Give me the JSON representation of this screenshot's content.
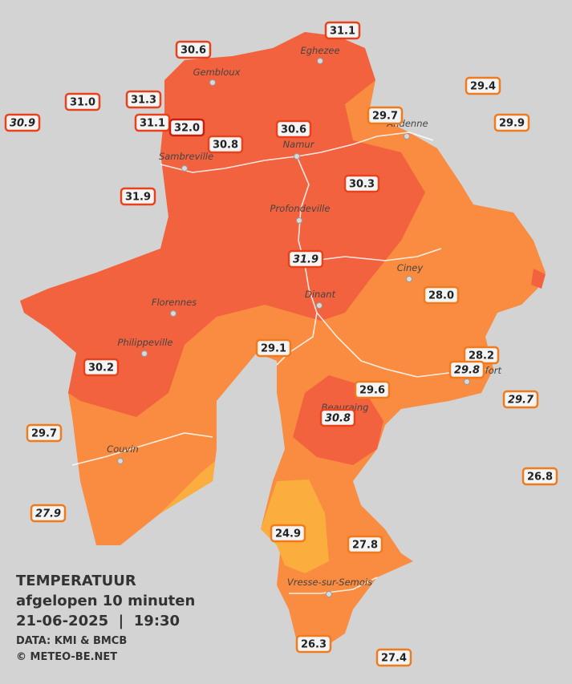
{
  "title": {
    "heading": "TEMPERATUUR",
    "subtitle": "afgelopen 10 minuten",
    "datetime": "21-06-2025  |  19:30",
    "source": "DATA: KMI & BMCB",
    "copyright": "© METEO-BE.NET"
  },
  "cities": [
    "Eghezee",
    "Gembloux",
    "Andenne",
    "Namur",
    "Sambreville",
    "Profondeville",
    "Ciney",
    "Dinant",
    "Florennes",
    "Philippeville",
    "Rochefort",
    "Beauraing",
    "Couvin",
    "Vresse-sur-Semois"
  ],
  "stations": [
    {
      "value": "31.1",
      "color": "#e8421d"
    },
    {
      "value": "30.6",
      "color": "#e8421d"
    },
    {
      "value": "31.0",
      "color": "#e8421d"
    },
    {
      "value": "31.3",
      "color": "#e8421d"
    },
    {
      "value": "30.9",
      "color": "#e8421d",
      "italic": true
    },
    {
      "value": "31.1",
      "color": "#e8421d"
    },
    {
      "value": "32.0",
      "color": "#c8200f"
    },
    {
      "value": "30.8",
      "color": "#e8421d"
    },
    {
      "value": "30.6",
      "color": "#e8421d"
    },
    {
      "value": "29.7",
      "color": "#f07a1c"
    },
    {
      "value": "29.4",
      "color": "#f07a1c"
    },
    {
      "value": "29.9",
      "color": "#f07a1c"
    },
    {
      "value": "30.3",
      "color": "#e8421d"
    },
    {
      "value": "31.9",
      "color": "#e8421d"
    },
    {
      "value": "31.9",
      "color": "#e8421d",
      "italic": true
    },
    {
      "value": "28.0",
      "color": "#f07a1c"
    },
    {
      "value": "29.1",
      "color": "#f07a1c"
    },
    {
      "value": "28.2",
      "color": "#f07a1c"
    },
    {
      "value": "29.8",
      "color": "#f07a1c",
      "italic": true
    },
    {
      "value": "30.2",
      "color": "#e8421d"
    },
    {
      "value": "29.6",
      "color": "#f07a1c"
    },
    {
      "value": "29.7",
      "color": "#f07a1c",
      "italic": true
    },
    {
      "value": "30.8",
      "color": "#e8421d",
      "italic": true
    },
    {
      "value": "29.7",
      "color": "#f07a1c"
    },
    {
      "value": "26.8",
      "color": "#f07a1c"
    },
    {
      "value": "27.9",
      "color": "#f07a1c",
      "italic": true
    },
    {
      "value": "24.9",
      "color": "#f07a1c"
    },
    {
      "value": "27.8",
      "color": "#f07a1c"
    },
    {
      "value": "26.3",
      "color": "#f07a1c"
    },
    {
      "value": "27.4",
      "color": "#f07a1c"
    }
  ]
}
